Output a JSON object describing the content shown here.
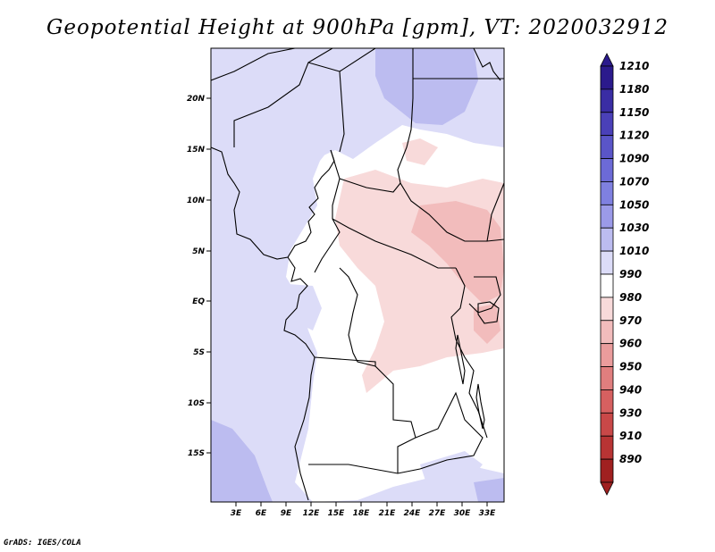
{
  "title": "Geopotential Height at 900hPa [gpm], VT: 2020032912",
  "credit": "GrADS: IGES/COLA",
  "map": {
    "lat_labels": [
      "20N",
      "15N",
      "10N",
      "5N",
      "EQ",
      "5S",
      "10S",
      "15S"
    ],
    "lon_labels": [
      "3E",
      "6E",
      "9E",
      "12E",
      "15E",
      "18E",
      "21E",
      "24E",
      "27E",
      "30E",
      "33E"
    ]
  },
  "colorbar": {
    "levels": [
      "1210",
      "1180",
      "1150",
      "1120",
      "1090",
      "1070",
      "1050",
      "1030",
      "1010",
      "990",
      "980",
      "970",
      "960",
      "950",
      "940",
      "930",
      "910",
      "890"
    ],
    "colors": [
      "#2b1a8c",
      "#3a2da4",
      "#4a40b8",
      "#5a55c8",
      "#6c6ad6",
      "#7f80e0",
      "#9b9ae8",
      "#bcbcf0",
      "#dcdcf8",
      "#ffffff",
      "#f8dada",
      "#f2bcbc",
      "#ea9c9c",
      "#e07e7e",
      "#d66060",
      "#c94848",
      "#b83434",
      "#a02020"
    ]
  }
}
